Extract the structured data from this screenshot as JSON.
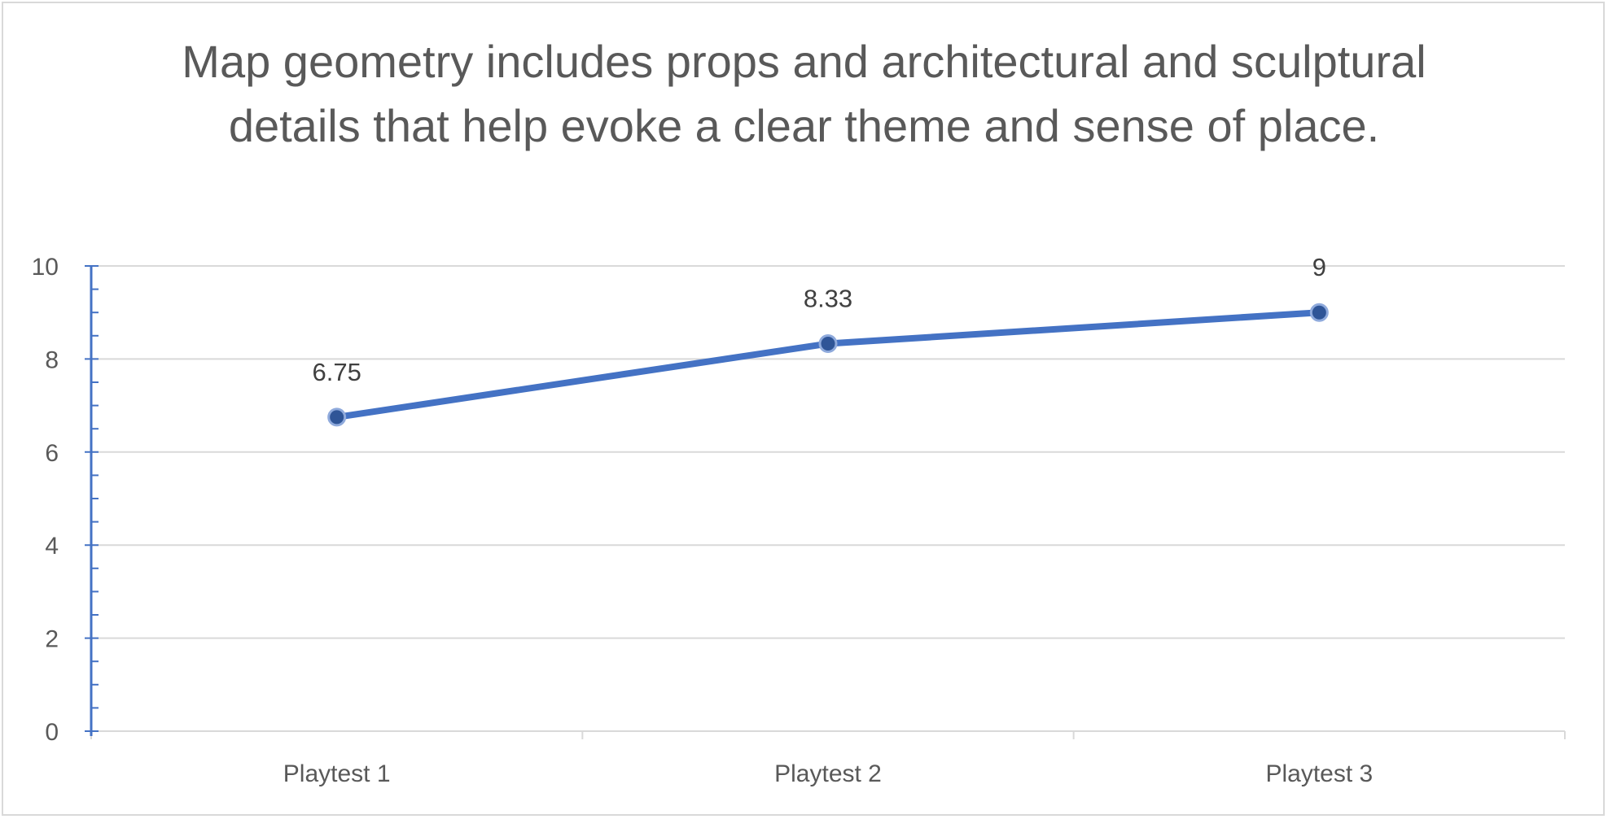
{
  "chart_data": {
    "type": "line",
    "title": "Map geometry includes props and architectural and sculptural details that help evoke a clear theme and sense of place.",
    "categories": [
      "Playtest 1",
      "Playtest 2",
      "Playtest 3"
    ],
    "series": [
      {
        "values": [
          6.75,
          8.33,
          9
        ],
        "data_labels": [
          "6.75",
          "8.33",
          "9"
        ]
      }
    ],
    "ylim": [
      0,
      10
    ],
    "yticks": [
      0,
      2,
      4,
      6,
      8,
      10
    ],
    "y_tick_labels": [
      "0",
      "2",
      "4",
      "6",
      "8",
      "10"
    ],
    "grid": true,
    "legend": "none",
    "colors": {
      "line": "#4472c4",
      "marker": "#2f5597",
      "marker_edge": "#8faadc",
      "axis": "#4472c4",
      "grid": "#d9d9d9"
    }
  }
}
